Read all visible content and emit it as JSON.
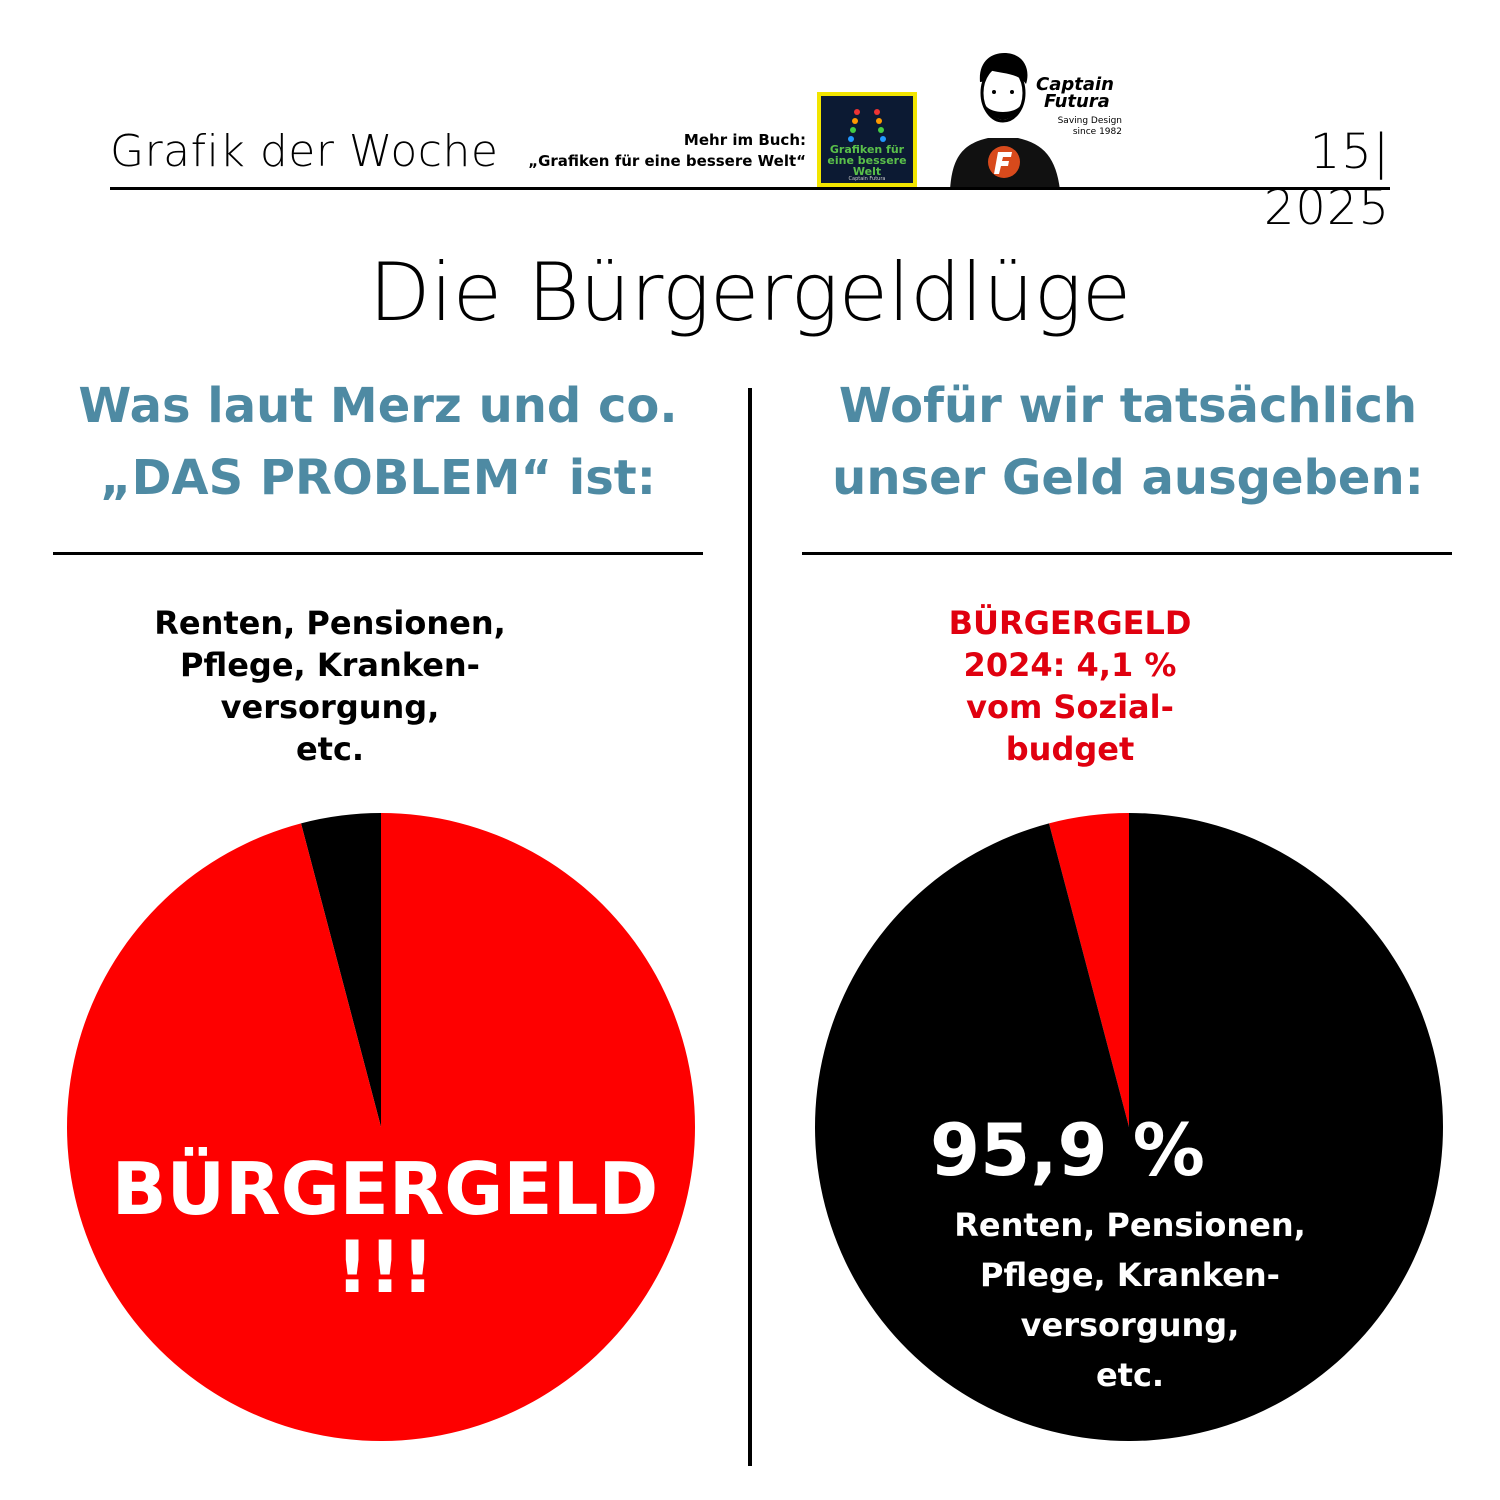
{
  "header": {
    "title": "Grafik der Woche",
    "promo_line1": "Mehr im Buch:",
    "promo_line2": "„Grafiken für eine bessere Welt“",
    "book_title": "Grafiken für eine bessere Welt",
    "book_author": "Captain Futura",
    "brand_name_1": "Captain",
    "brand_name_2": "Futura",
    "brand_sub_1": "Saving Design",
    "brand_sub_2": "since 1982",
    "issue": "15| 2025"
  },
  "title": "Die Bürgergeldlüge",
  "left": {
    "heading_line1": "Was laut Merz und co.",
    "heading_line2": "„DAS PROBLEM“ ist:",
    "top_label_lines": [
      "Renten, Pensionen,",
      "Pflege, Kranken-",
      "versorgung,",
      "etc."
    ],
    "slice_label_1": "BÜRGERGELD",
    "slice_label_2": "!!!"
  },
  "right": {
    "heading_line1": "Wofür wir tatsächlich",
    "heading_line2": "unser Geld ausgeben:",
    "top_label_lines": [
      "BÜRGERGELD",
      "2024: 4,1 %",
      "vom Sozial-",
      "budget"
    ],
    "slice_pct": "95,9 %",
    "slice_label_lines": [
      "Renten, Pensionen,",
      "Pflege, Kranken-",
      "versorgung,",
      "etc."
    ]
  },
  "colors": {
    "red": "#fe0000",
    "black": "#000000",
    "heading_blue": "#4e8aa3",
    "label_red": "#e0000f"
  },
  "chart_data": [
    {
      "type": "pie",
      "title": "Was laut Merz und co. „DAS PROBLEM“ ist:",
      "slices": [
        {
          "label": "Renten, Pensionen, Pflege, Krankenversorgung, etc.",
          "value": 4.1,
          "color": "#000000"
        },
        {
          "label": "BÜRGERGELD !!!",
          "value": 95.9,
          "color": "#fe0000"
        }
      ]
    },
    {
      "type": "pie",
      "title": "Wofür wir tatsächlich unser Geld ausgeben:",
      "slices": [
        {
          "label": "BÜRGERGELD 2024: 4,1 % vom Sozialbudget",
          "value": 4.1,
          "color": "#fe0000"
        },
        {
          "label": "95,9 % Renten, Pensionen, Pflege, Krankenversorgung, etc.",
          "value": 95.9,
          "color": "#000000"
        }
      ]
    }
  ]
}
